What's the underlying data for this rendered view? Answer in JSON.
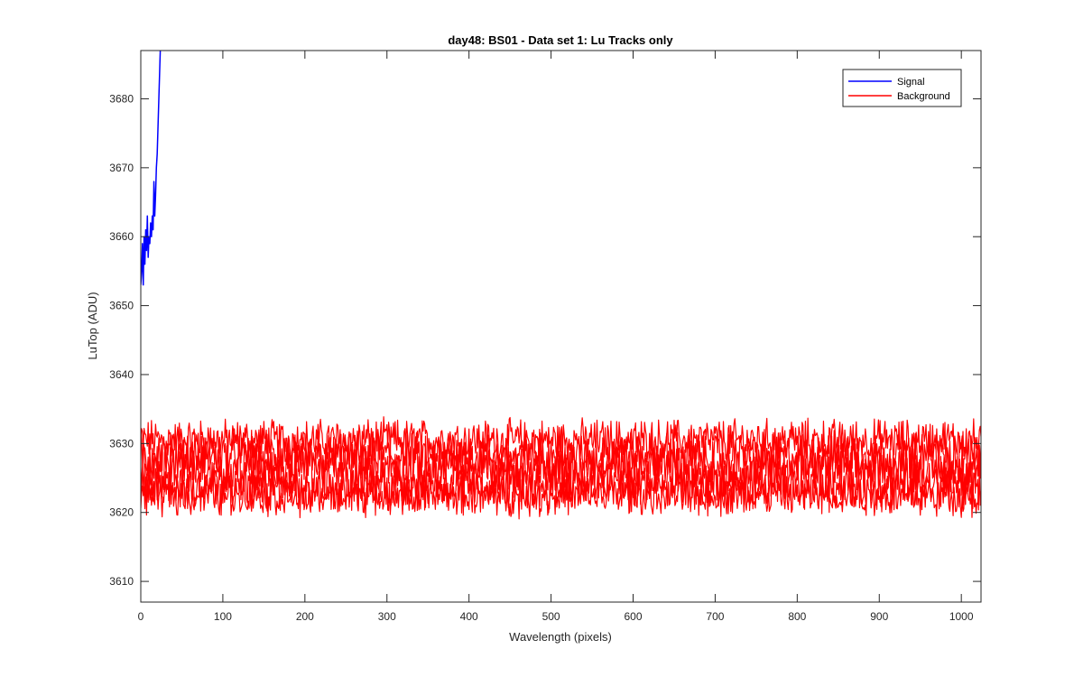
{
  "chart_data": {
    "type": "line",
    "title": "day48: BS01 - Data set 1: Lu Tracks only",
    "xlabel": "Wavelength (pixels)",
    "ylabel": "LuTop (ADU)",
    "xlim": [
      0,
      1024
    ],
    "ylim": [
      3607,
      3687
    ],
    "xticks": [
      "0",
      "100",
      "200",
      "300",
      "400",
      "500",
      "600",
      "700",
      "800",
      "900",
      "1000"
    ],
    "yticks": [
      "3610",
      "3620",
      "3630",
      "3640",
      "3650",
      "3660",
      "3670",
      "3680"
    ],
    "grid": false,
    "legend_position": "top-right",
    "legend": [
      "Signal",
      "Background"
    ],
    "series": [
      {
        "name": "Signal",
        "color": "#0000ff",
        "x": [
          0,
          1,
          2,
          3,
          4,
          5,
          6,
          7,
          8,
          9,
          10,
          11,
          12,
          13,
          14,
          15,
          16,
          17,
          18,
          19,
          20,
          21,
          22,
          23,
          24
        ],
        "y": [
          3653,
          3655,
          3659,
          3653,
          3660,
          3656,
          3661,
          3658,
          3663,
          3657,
          3660,
          3659,
          3662,
          3660,
          3663,
          3661,
          3668,
          3663,
          3666,
          3670,
          3672,
          3676,
          3680,
          3684,
          3688
        ]
      },
      {
        "name": "Background",
        "color": "#ff0000",
        "x_range": [
          0,
          1024
        ],
        "bands": [
          {
            "mean": 3630.5,
            "amplitude": 2.5
          },
          {
            "mean": 3628.0,
            "amplitude": 3.0
          },
          {
            "mean": 3626.5,
            "amplitude": 3.5
          },
          {
            "mean": 3624.0,
            "amplitude": 3.0
          },
          {
            "mean": 3622.5,
            "amplitude": 2.5
          }
        ],
        "max": 3636.5,
        "min": 3617.5
      }
    ]
  }
}
